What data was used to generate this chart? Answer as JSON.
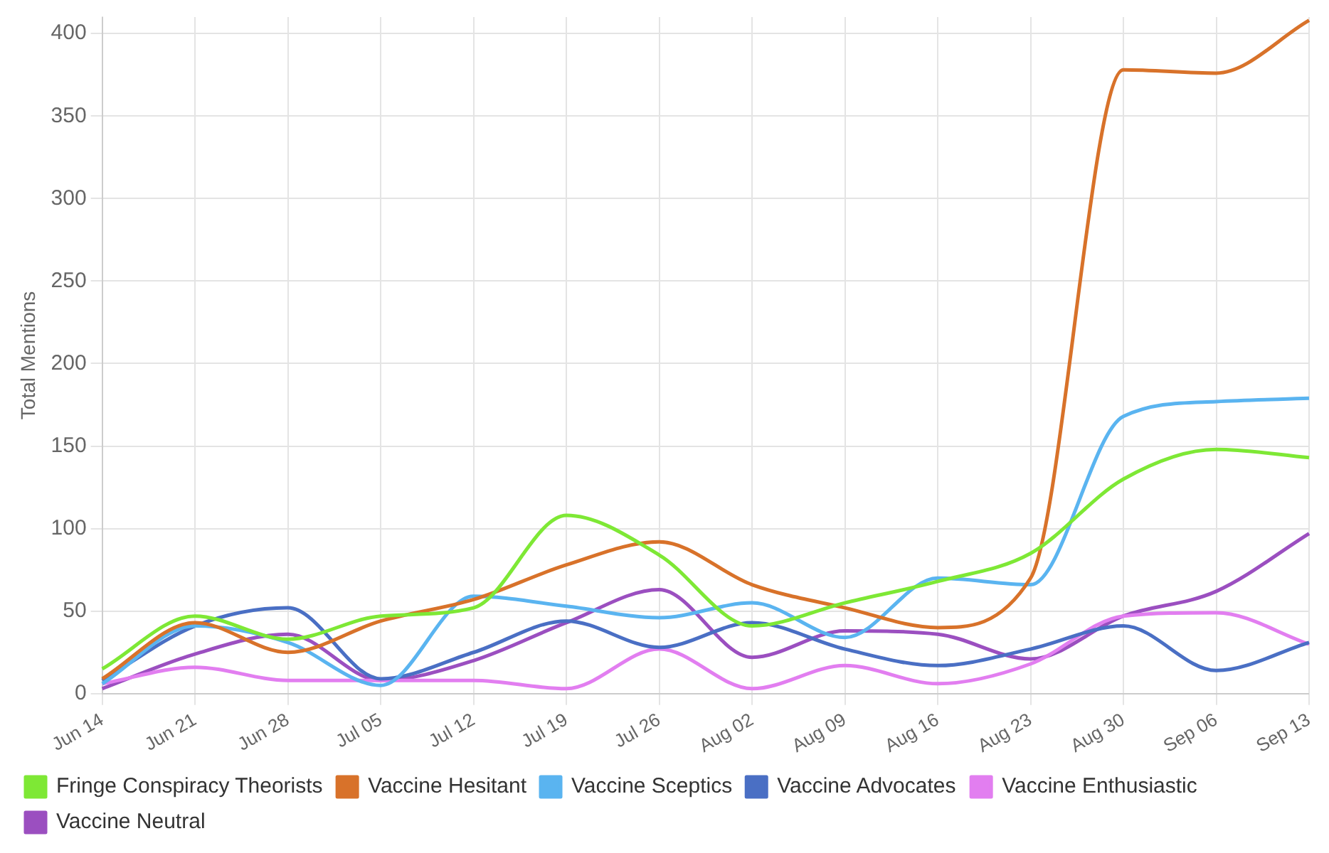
{
  "chart_data": {
    "type": "line",
    "ylabel": "Total Mentions",
    "categories": [
      "Jun 14",
      "Jun 21",
      "Jun 28",
      "Jul 05",
      "Jul 12",
      "Jul 19",
      "Jul 26",
      "Aug 02",
      "Aug 09",
      "Aug 16",
      "Aug 23",
      "Aug 30",
      "Sep 06",
      "Sep 13"
    ],
    "series": [
      {
        "name": "Fringe Conspiracy Theorists",
        "color": "#7ee835",
        "values": [
          15,
          47,
          33,
          47,
          52,
          108,
          84,
          41,
          55,
          68,
          85,
          130,
          148,
          143
        ]
      },
      {
        "name": "Vaccine Hesitant",
        "color": "#d8722a",
        "values": [
          9,
          43,
          25,
          44,
          57,
          78,
          92,
          66,
          52,
          40,
          70,
          378,
          376,
          408
        ]
      },
      {
        "name": "Vaccine Sceptics",
        "color": "#5ab4f0",
        "values": [
          6,
          41,
          31,
          5,
          59,
          53,
          46,
          55,
          34,
          70,
          66,
          168,
          177,
          179
        ]
      },
      {
        "name": "Vaccine Advocates",
        "color": "#4a6fc4",
        "values": [
          8,
          41,
          52,
          9,
          25,
          44,
          28,
          43,
          27,
          17,
          27,
          41,
          14,
          31
        ]
      },
      {
        "name": "Vaccine Enthusiastic",
        "color": "#e27ef0",
        "values": [
          6,
          16,
          8,
          8,
          8,
          3,
          27,
          3,
          17,
          6,
          18,
          47,
          49,
          30
        ]
      },
      {
        "name": "Vaccine Neutral",
        "color": "#9b4fc0",
        "values": [
          3,
          24,
          36,
          8,
          20,
          43,
          63,
          22,
          38,
          36,
          21,
          47,
          62,
          97
        ]
      }
    ],
    "ylim": [
      0,
      410
    ],
    "yticks": [
      0,
      50,
      100,
      150,
      200,
      250,
      300,
      350,
      400
    ],
    "grid": true,
    "legend": "bottom",
    "marker": "none",
    "line_style": "solid"
  }
}
